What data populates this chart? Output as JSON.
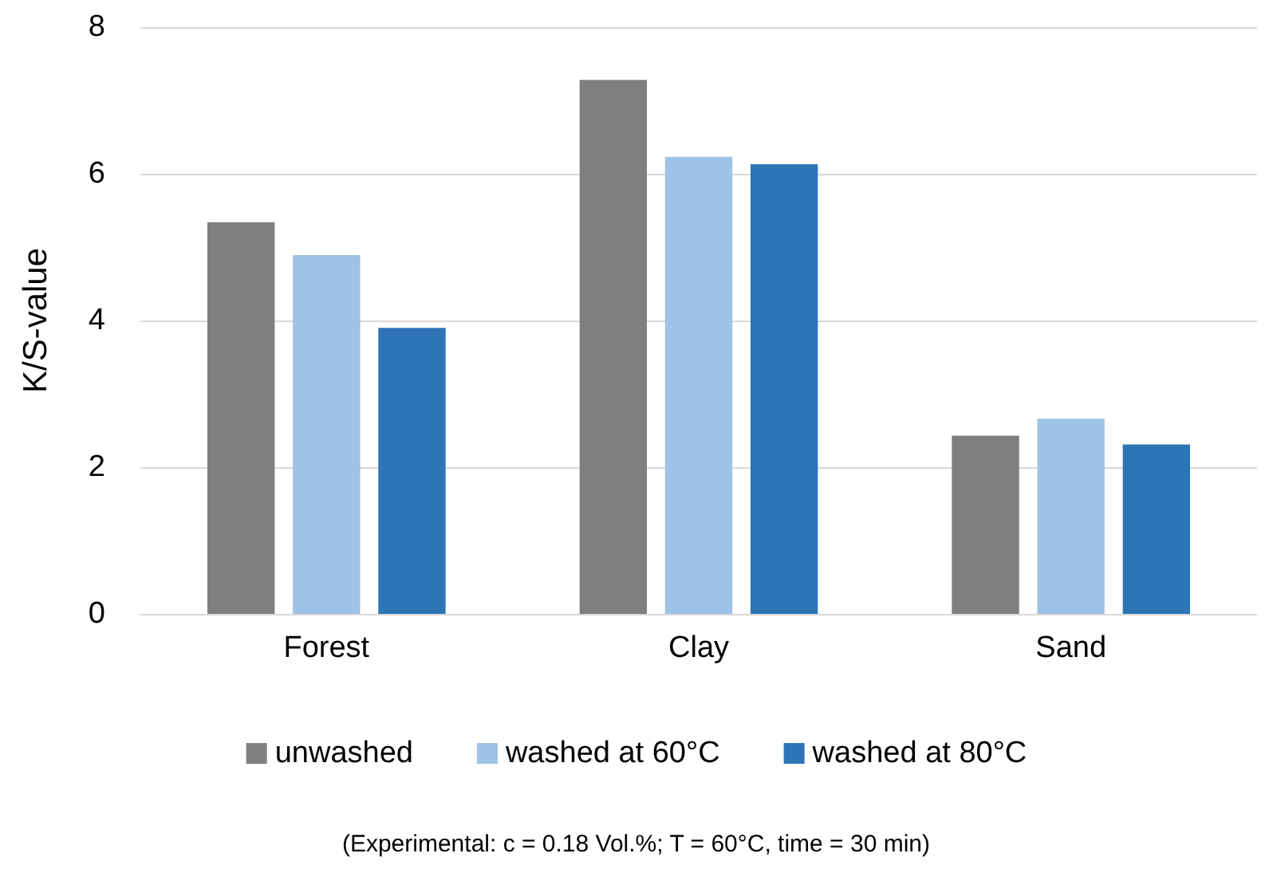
{
  "chart_data": {
    "type": "bar",
    "ylabel": "K/S-value",
    "categories": [
      "Forest",
      "Clay",
      "Sand"
    ],
    "series": [
      {
        "name": "unwashed",
        "color": "#7f7f7f",
        "values": [
          5.34,
          7.28,
          2.43
        ]
      },
      {
        "name": "washed at 60°C",
        "color": "#9dc3e6",
        "values": [
          4.89,
          6.23,
          2.66
        ]
      },
      {
        "name": "washed at 80°C",
        "color": "#2e75b6",
        "values": [
          3.9,
          6.13,
          2.31
        ]
      }
    ],
    "ylim": [
      0,
      8
    ],
    "yticks": [
      0,
      2,
      4,
      6,
      8
    ],
    "grid": "y",
    "legend": "bottom",
    "annotations": [
      "(Experimental: c = 0.18 Vol.%; T = 60°C, time = 30 min)"
    ]
  }
}
